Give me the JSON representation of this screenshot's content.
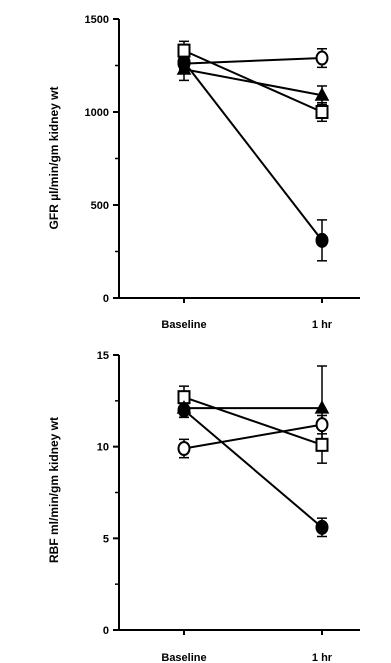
{
  "chart_data": [
    {
      "type": "line",
      "ylabel": "GFR µl/min/gm kidney wt",
      "xlabel": "",
      "categories": [
        "Baseline",
        "1 hr"
      ],
      "yticks": [
        0,
        500,
        1000,
        1500
      ],
      "ylim": [
        0,
        1500
      ],
      "grid": false,
      "series": [
        {
          "marker": "open-circle",
          "values": [
            1260,
            1290
          ],
          "errors": [
            30,
            50
          ]
        },
        {
          "marker": "filled-circle",
          "values": [
            1270,
            310
          ],
          "errors": [
            40,
            110
          ]
        },
        {
          "marker": "open-square",
          "values": [
            1330,
            1000
          ],
          "errors": [
            50,
            50
          ]
        },
        {
          "marker": "filled-triangle",
          "values": [
            1230,
            1090
          ],
          "errors": [
            60,
            50
          ]
        }
      ]
    },
    {
      "type": "line",
      "ylabel": "RBF ml/min/gm kidney wt",
      "xlabel": "",
      "categories": [
        "Baseline",
        "1 hr"
      ],
      "yticks": [
        0,
        5,
        10,
        15
      ],
      "ylim": [
        0,
        15
      ],
      "grid": false,
      "series": [
        {
          "marker": "open-circle",
          "values": [
            9.9,
            11.2
          ],
          "errors": [
            0.5,
            0.5
          ]
        },
        {
          "marker": "filled-circle",
          "values": [
            12.0,
            5.6
          ],
          "errors": [
            0.4,
            0.5
          ]
        },
        {
          "marker": "open-square",
          "values": [
            12.7,
            10.1
          ],
          "errors": [
            0.6,
            1.0
          ]
        },
        {
          "marker": "filled-triangle",
          "values": [
            12.1,
            12.1
          ],
          "errors": [
            0.5,
            2.3
          ]
        }
      ]
    }
  ]
}
